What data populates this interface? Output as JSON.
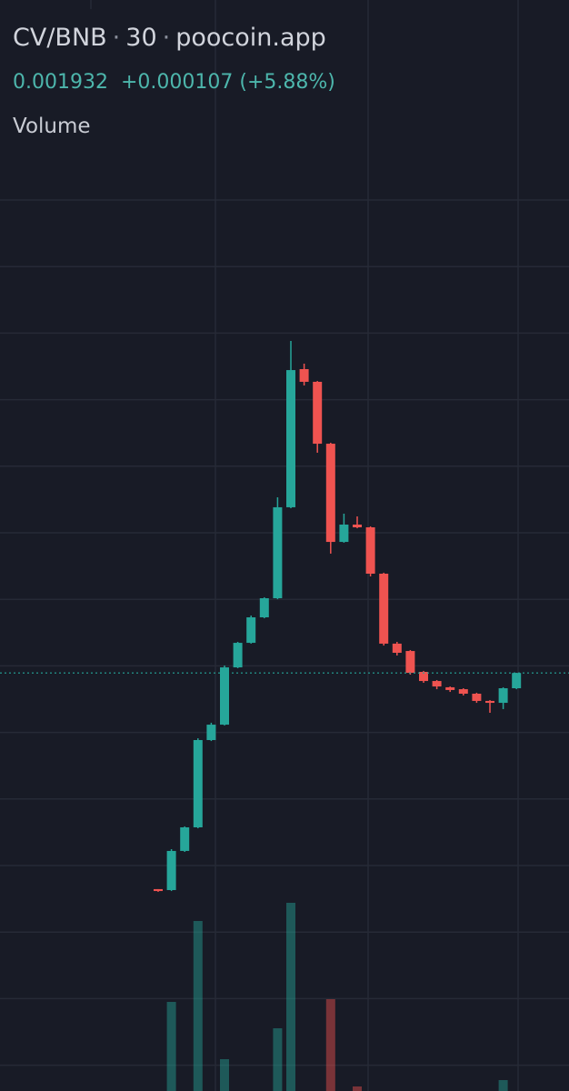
{
  "header": {
    "symbol": "CV/BNB",
    "interval": "30",
    "source": "poocoin.app",
    "price": "0.001932",
    "change": "+0.000107",
    "change_pct": "(+5.88%)",
    "indicator": "Volume"
  },
  "chart_data": {
    "type": "candlestick",
    "up_color": "#26a69a",
    "down_color": "#ef5350",
    "ylim": [
      0.0002,
      0.0058
    ],
    "last_price": 0.001932,
    "open": [
      0.000347,
      0.00034,
      0.000627,
      0.0008,
      0.00144,
      0.001553,
      0.001973,
      0.002153,
      0.00234,
      0.00248,
      0.003147,
      0.00416,
      0.004067,
      0.003613,
      0.002893,
      0.00302,
      0.003,
      0.00266,
      0.002147,
      0.002093,
      0.00194,
      0.001873,
      0.001827,
      0.001813,
      0.00178,
      0.001727,
      0.001713,
      0.00182
    ],
    "high": [
      0.000347,
      0.00064,
      0.000807,
      0.001453,
      0.001567,
      0.001987,
      0.00216,
      0.002353,
      0.002487,
      0.00322,
      0.004367,
      0.0042,
      0.004073,
      0.00362,
      0.0031,
      0.00308,
      0.003007,
      0.002667,
      0.00216,
      0.0021,
      0.001947,
      0.00188,
      0.001833,
      0.00182,
      0.001787,
      0.001733,
      0.001827,
      0.001933
    ],
    "low": [
      0.000327,
      0.000333,
      0.00062,
      0.000793,
      0.001433,
      0.001547,
      0.001967,
      0.002147,
      0.002333,
      0.002473,
      0.00314,
      0.00404,
      0.003547,
      0.002807,
      0.002887,
      0.002993,
      0.00264,
      0.002133,
      0.00206,
      0.00192,
      0.00186,
      0.001813,
      0.001793,
      0.001767,
      0.001713,
      0.00164,
      0.001667,
      0.001813
    ],
    "close": [
      0.000333,
      0.000627,
      0.0008,
      0.00144,
      0.001553,
      0.001973,
      0.002153,
      0.00234,
      0.00248,
      0.003147,
      0.004153,
      0.004067,
      0.003613,
      0.002893,
      0.00302,
      0.003,
      0.00266,
      0.002147,
      0.00208,
      0.001933,
      0.001873,
      0.001833,
      0.001807,
      0.00178,
      0.001727,
      0.001713,
      0.00182,
      0.001932
    ],
    "volume": [
      0,
      98,
      0,
      187,
      0,
      35,
      0,
      0,
      0,
      69,
      207,
      0,
      0,
      101,
      0,
      5,
      0,
      0,
      0,
      0,
      0,
      0,
      0,
      0,
      0,
      0,
      12,
      0
    ],
    "volume_lim": [
      0,
      250
    ]
  }
}
